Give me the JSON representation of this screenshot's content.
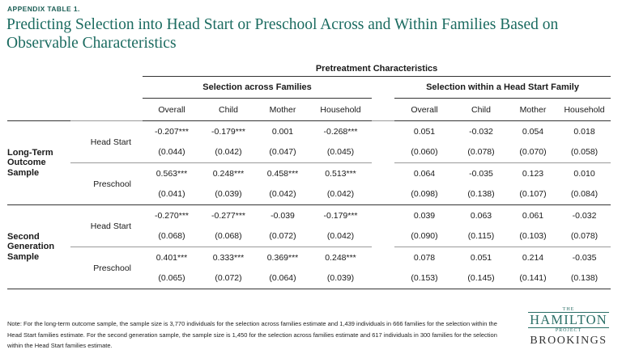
{
  "label": "APPENDIX TABLE 1.",
  "title": "Predicting Selection into Head Start or Preschool Across and Within Families Based on Observable Characteristics",
  "table": {
    "super_header": "Pretreatment Characteristics",
    "group_across": "Selection across Families",
    "group_within": "Selection within a Head Start Family",
    "columns": [
      "Overall",
      "Child",
      "Mother",
      "Household",
      "Overall",
      "Child",
      "Mother",
      "Household"
    ],
    "samples": [
      {
        "name": "Long-Term Outcome Sample",
        "rows": [
          {
            "label": "Head Start",
            "coef": [
              "-0.207***",
              "-0.179***",
              "0.001",
              "-0.268***",
              "0.051",
              "-0.032",
              "0.054",
              "0.018"
            ],
            "se": [
              "(0.044)",
              "(0.042)",
              "(0.047)",
              "(0.045)",
              "(0.060)",
              "(0.078)",
              "(0.070)",
              "(0.058)"
            ]
          },
          {
            "label": "Preschool",
            "coef": [
              "0.563***",
              "0.248***",
              "0.458***",
              "0.513***",
              "0.064",
              "-0.035",
              "0.123",
              "0.010"
            ],
            "se": [
              "(0.041)",
              "(0.039)",
              "(0.042)",
              "(0.042)",
              "(0.098)",
              "(0.138)",
              "(0.107)",
              "(0.084)"
            ]
          }
        ]
      },
      {
        "name": "Second Generation Sample",
        "rows": [
          {
            "label": "Head Start",
            "coef": [
              "-0.270***",
              "-0.277***",
              "-0.039",
              "-0.179***",
              "0.039",
              "0.063",
              "0.061",
              "-0.032"
            ],
            "se": [
              "(0.068)",
              "(0.068)",
              "(0.072)",
              "(0.042)",
              "(0.090)",
              "(0.115)",
              "(0.103)",
              "(0.078)"
            ]
          },
          {
            "label": "Preschool",
            "coef": [
              "0.401***",
              "0.333***",
              "0.369***",
              "0.248***",
              "0.078",
              "0.051",
              "0.214",
              "-0.035"
            ],
            "se": [
              "(0.065)",
              "(0.072)",
              "(0.064)",
              "(0.039)",
              "(0.153)",
              "(0.145)",
              "(0.141)",
              "(0.138)"
            ]
          }
        ]
      }
    ]
  },
  "note": "Note: For the long-term outcome sample, the sample size is 3,770 individuals for the selection across families estimate and 1,439 individuals in 666 families for the selection within the Head Start families estimate. For the second generation sample, the sample size is 1,450 for the selection across families estimate and 617 individuals in 300 families for the selection within the Head Start families estimate.",
  "logo": {
    "the": "THE",
    "hamilton": "HAMILTON",
    "project": "PROJECT",
    "brookings": "BROOKINGS"
  }
}
